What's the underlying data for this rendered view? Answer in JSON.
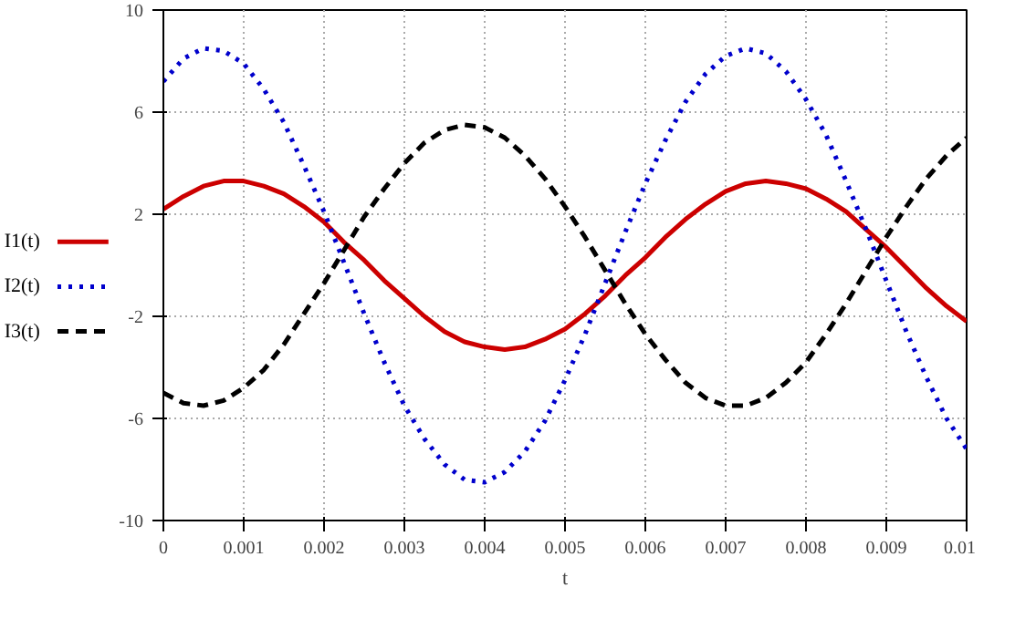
{
  "chart_data": {
    "type": "line",
    "xlabel": "t",
    "legend": "left",
    "grid": true,
    "marker": "none",
    "x": [
      0,
      0.00025,
      0.0005,
      0.00075,
      0.001,
      0.00125,
      0.0015,
      0.00175,
      0.002,
      0.00225,
      0.0025,
      0.00275,
      0.003,
      0.00325,
      0.0035,
      0.00375,
      0.004,
      0.00425,
      0.0045,
      0.00475,
      0.005,
      0.00525,
      0.0055,
      0.00575,
      0.006,
      0.00625,
      0.0065,
      0.00675,
      0.007,
      0.00725,
      0.0075,
      0.00775,
      0.008,
      0.00825,
      0.0085,
      0.00875,
      0.009,
      0.00925,
      0.0095,
      0.00975,
      0.01
    ],
    "xlim": [
      0,
      0.01
    ],
    "xticks": [
      0,
      0.001,
      0.002,
      0.003,
      0.004,
      0.005,
      0.006,
      0.007,
      0.008,
      0.009,
      0.01
    ],
    "ylim": [
      -10,
      10
    ],
    "yticks": [
      -10,
      -6,
      -2,
      2,
      6,
      10
    ],
    "series": [
      {
        "name": "I1(t)",
        "color": "#cc0000",
        "line_style": "solid",
        "values": [
          2.2,
          2.7,
          3.1,
          3.3,
          3.3,
          3.1,
          2.8,
          2.3,
          1.7,
          0.9,
          0.2,
          -0.6,
          -1.3,
          -2.0,
          -2.6,
          -3.0,
          -3.2,
          -3.3,
          -3.2,
          -2.9,
          -2.5,
          -1.9,
          -1.2,
          -0.4,
          0.3,
          1.1,
          1.8,
          2.4,
          2.9,
          3.2,
          3.3,
          3.2,
          3.0,
          2.6,
          2.1,
          1.4,
          0.7,
          -0.1,
          -0.9,
          -1.6,
          -2.2
        ]
      },
      {
        "name": "I2(t)",
        "color": "#0000cc",
        "line_style": "dotted",
        "values": [
          7.2,
          8.1,
          8.5,
          8.4,
          7.9,
          6.9,
          5.6,
          3.9,
          2.1,
          0.1,
          -1.9,
          -3.8,
          -5.5,
          -6.8,
          -7.8,
          -8.4,
          -8.5,
          -8.1,
          -7.3,
          -6.1,
          -4.5,
          -2.7,
          -0.7,
          1.3,
          3.2,
          4.9,
          6.4,
          7.5,
          8.2,
          8.5,
          8.3,
          7.6,
          6.5,
          5.1,
          3.3,
          1.4,
          -0.6,
          -2.6,
          -4.4,
          -6.0,
          -7.2
        ]
      },
      {
        "name": "I3(t)",
        "color": "#000000",
        "line_style": "dashed",
        "values": [
          -5.0,
          -5.4,
          -5.5,
          -5.3,
          -4.8,
          -4.1,
          -3.1,
          -1.9,
          -0.7,
          0.6,
          1.9,
          3.0,
          4.0,
          4.8,
          5.3,
          5.5,
          5.4,
          5.0,
          4.3,
          3.4,
          2.3,
          1.1,
          -0.2,
          -1.5,
          -2.7,
          -3.7,
          -4.6,
          -5.2,
          -5.5,
          -5.5,
          -5.2,
          -4.6,
          -3.8,
          -2.7,
          -1.5,
          -0.2,
          1.1,
          2.3,
          3.4,
          4.3,
          5.0
        ]
      }
    ]
  }
}
